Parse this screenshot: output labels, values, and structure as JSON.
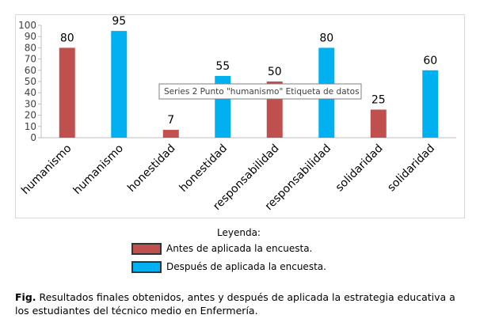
{
  "chart_data": {
    "type": "bar",
    "categories": [
      "humanismo",
      "humanismo",
      "honestidad",
      "honestidad",
      "responsabilidad",
      "responsabilidad",
      "solidaridad",
      "solidaridad"
    ],
    "values": [
      80,
      95,
      7,
      55,
      50,
      80,
      25,
      60
    ],
    "series_index": [
      1,
      2,
      1,
      2,
      1,
      2,
      1,
      2
    ],
    "series": [
      {
        "name": "Antes de aplicada la encuesta.",
        "color": "#c0504d"
      },
      {
        "name": "Después de aplicada la encuesta.",
        "color": "#00b0f0"
      }
    ],
    "y_ticks": [
      "0",
      "10",
      "20",
      "30",
      "40",
      "50",
      "60",
      "70",
      "80",
      "90",
      "100"
    ],
    "ylim": [
      0,
      100
    ],
    "grid": false,
    "tooltip": "Series 2 Punto \"humanismo\" Etiqueta de datos"
  },
  "legend": {
    "title": "Leyenda:",
    "items": [
      {
        "label": "Antes de aplicada la encuesta.",
        "color": "#c0504d"
      },
      {
        "label": "Después de aplicada la encuesta.",
        "color": "#00b0f0"
      }
    ]
  },
  "caption": {
    "prefix": "Fig.",
    "text": " Resultados finales obtenidos, antes y después de aplicada la estrategia educativa a los estudiantes del técnico medio en Enfermería."
  }
}
